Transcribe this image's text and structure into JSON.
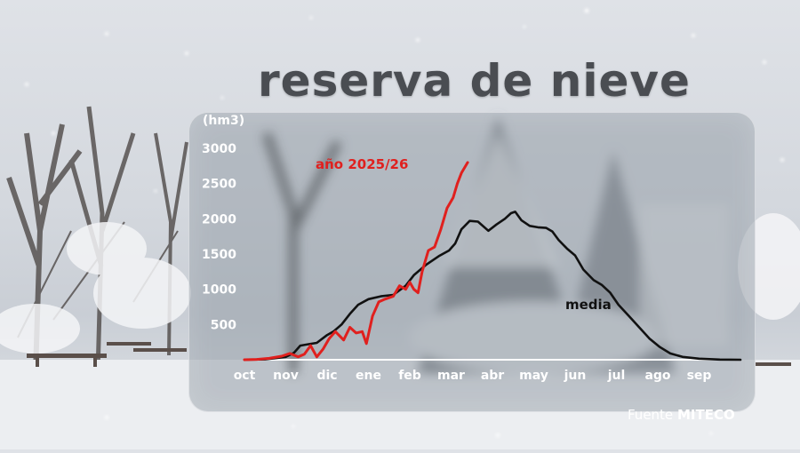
{
  "title": "reserva de nieve",
  "source": {
    "label": "Fuente",
    "org": "MITECO"
  },
  "chart_data": {
    "type": "line",
    "ylabel": "(hm3)",
    "ylim": [
      0,
      3000
    ],
    "yticks": [
      500,
      1000,
      1500,
      2000,
      2500,
      3000
    ],
    "categories": [
      "oct",
      "nov",
      "dic",
      "ene",
      "feb",
      "mar",
      "abr",
      "may",
      "jun",
      "jul",
      "ago",
      "sep"
    ],
    "series": [
      {
        "name": "año 2025/26",
        "color": "#e0201e",
        "points": [
          [
            0,
            0
          ],
          [
            0.3,
            5
          ],
          [
            0.6,
            20
          ],
          [
            0.9,
            50
          ],
          [
            1.1,
            90
          ],
          [
            1.3,
            40
          ],
          [
            1.45,
            80
          ],
          [
            1.6,
            200
          ],
          [
            1.75,
            40
          ],
          [
            1.9,
            150
          ],
          [
            2.05,
            300
          ],
          [
            2.2,
            400
          ],
          [
            2.4,
            280
          ],
          [
            2.55,
            460
          ],
          [
            2.7,
            380
          ],
          [
            2.85,
            400
          ],
          [
            2.95,
            230
          ],
          [
            3.1,
            620
          ],
          [
            3.25,
            820
          ],
          [
            3.4,
            860
          ],
          [
            3.6,
            900
          ],
          [
            3.75,
            1050
          ],
          [
            3.9,
            1000
          ],
          [
            4.0,
            1100
          ],
          [
            4.1,
            1000
          ],
          [
            4.2,
            950
          ],
          [
            4.3,
            1250
          ],
          [
            4.45,
            1550
          ],
          [
            4.6,
            1600
          ],
          [
            4.75,
            1850
          ],
          [
            4.9,
            2150
          ],
          [
            5.05,
            2300
          ],
          [
            5.15,
            2500
          ],
          [
            5.25,
            2650
          ],
          [
            5.4,
            2800
          ]
        ]
      },
      {
        "name": "media",
        "color": "#111111",
        "points": [
          [
            0,
            0
          ],
          [
            0.5,
            5
          ],
          [
            1.0,
            40
          ],
          [
            1.2,
            100
          ],
          [
            1.35,
            200
          ],
          [
            1.55,
            220
          ],
          [
            1.75,
            240
          ],
          [
            2.0,
            350
          ],
          [
            2.15,
            400
          ],
          [
            2.35,
            500
          ],
          [
            2.55,
            650
          ],
          [
            2.75,
            780
          ],
          [
            3.0,
            860
          ],
          [
            3.3,
            900
          ],
          [
            3.6,
            920
          ],
          [
            3.9,
            1050
          ],
          [
            4.1,
            1200
          ],
          [
            4.4,
            1350
          ],
          [
            4.7,
            1470
          ],
          [
            4.95,
            1550
          ],
          [
            5.1,
            1650
          ],
          [
            5.25,
            1850
          ],
          [
            5.45,
            1970
          ],
          [
            5.65,
            1960
          ],
          [
            5.9,
            1830
          ],
          [
            6.1,
            1920
          ],
          [
            6.3,
            2000
          ],
          [
            6.45,
            2080
          ],
          [
            6.55,
            2100
          ],
          [
            6.7,
            1980
          ],
          [
            6.9,
            1900
          ],
          [
            7.1,
            1880
          ],
          [
            7.3,
            1870
          ],
          [
            7.45,
            1820
          ],
          [
            7.6,
            1700
          ],
          [
            7.8,
            1580
          ],
          [
            8.0,
            1480
          ],
          [
            8.2,
            1280
          ],
          [
            8.45,
            1130
          ],
          [
            8.65,
            1060
          ],
          [
            8.85,
            950
          ],
          [
            9.05,
            780
          ],
          [
            9.3,
            620
          ],
          [
            9.55,
            460
          ],
          [
            9.8,
            300
          ],
          [
            10.05,
            180
          ],
          [
            10.3,
            90
          ],
          [
            10.6,
            40
          ],
          [
            11.0,
            15
          ],
          [
            11.5,
            3
          ],
          [
            12.0,
            0
          ]
        ]
      }
    ],
    "annotations": [
      {
        "text": "año 2025/26",
        "color": "#e0201e",
        "series": 0
      },
      {
        "text": "media",
        "color": "#111111",
        "series": 1
      }
    ]
  }
}
